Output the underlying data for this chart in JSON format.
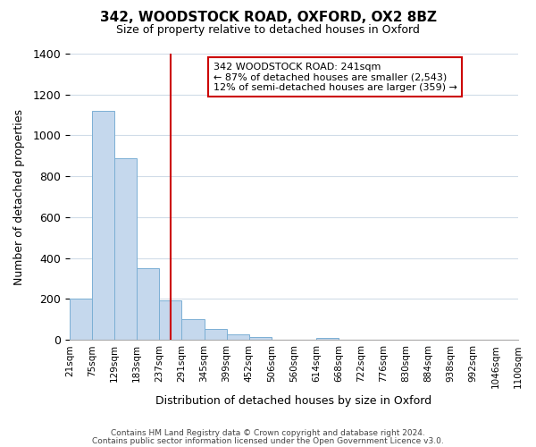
{
  "title": "342, WOODSTOCK ROAD, OXFORD, OX2 8BZ",
  "subtitle": "Size of property relative to detached houses in Oxford",
  "xlabel": "Distribution of detached houses by size in Oxford",
  "ylabel": "Number of detached properties",
  "bin_edges": [
    "21sqm",
    "75sqm",
    "129sqm",
    "183sqm",
    "237sqm",
    "291sqm",
    "345sqm",
    "399sqm",
    "452sqm",
    "506sqm",
    "560sqm",
    "614sqm",
    "668sqm",
    "722sqm",
    "776sqm",
    "830sqm",
    "884sqm",
    "938sqm",
    "992sqm",
    "1046sqm",
    "1100sqm"
  ],
  "bar_values": [
    200,
    1120,
    890,
    350,
    195,
    100,
    55,
    25,
    15,
    0,
    0,
    10,
    0,
    0,
    0,
    0,
    0,
    0,
    0,
    0
  ],
  "bar_color": "#c5d8ed",
  "bar_edge_color": "#7bafd4",
  "vline_color": "#cc0000",
  "vline_pos": 4.5,
  "annotation_text": "342 WOODSTOCK ROAD: 241sqm\n← 87% of detached houses are smaller (2,543)\n12% of semi-detached houses are larger (359) →",
  "annotation_box_edgecolor": "#cc0000",
  "ylim": [
    0,
    1400
  ],
  "yticks": [
    0,
    200,
    400,
    600,
    800,
    1000,
    1200,
    1400
  ],
  "footer_line1": "Contains HM Land Registry data © Crown copyright and database right 2024.",
  "footer_line2": "Contains public sector information licensed under the Open Government Licence v3.0.",
  "bg_color": "#ffffff",
  "grid_color": "#d0dce8"
}
